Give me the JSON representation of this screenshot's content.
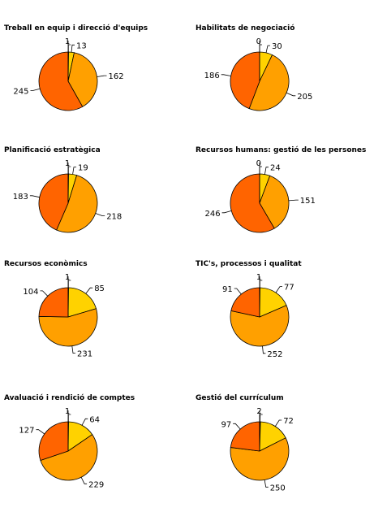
{
  "colors": {
    "very_high": "#ffd200",
    "high": "#ffa000",
    "medium": "#ff6400",
    "zero": "#000000",
    "outline": "#000000"
  },
  "chart_data": [
    {
      "type": "pie",
      "title": "Treball en equip i direcció d'equips",
      "slices": [
        {
          "value": 1,
          "color": "#000000"
        },
        {
          "value": 13,
          "color": "#ffd200"
        },
        {
          "value": 162,
          "color": "#ffa000"
        },
        {
          "value": 245,
          "color": "#ff6400"
        }
      ]
    },
    {
      "type": "pie",
      "title": "Habilitats de negociació",
      "slices": [
        {
          "value": 0,
          "color": "#000000"
        },
        {
          "value": 30,
          "color": "#ffd200"
        },
        {
          "value": 205,
          "color": "#ffa000"
        },
        {
          "value": 186,
          "color": "#ff6400"
        }
      ]
    },
    {
      "type": "pie",
      "title": "Planificació estratègica",
      "slices": [
        {
          "value": 1,
          "color": "#000000"
        },
        {
          "value": 19,
          "color": "#ffd200"
        },
        {
          "value": 218,
          "color": "#ffa000"
        },
        {
          "value": 183,
          "color": "#ff6400"
        }
      ]
    },
    {
      "type": "pie",
      "title": "Recursos humans: gestió de les persones",
      "slices": [
        {
          "value": 0,
          "color": "#000000"
        },
        {
          "value": 24,
          "color": "#ffd200"
        },
        {
          "value": 151,
          "color": "#ffa000"
        },
        {
          "value": 246,
          "color": "#ff6400"
        }
      ]
    },
    {
      "type": "pie",
      "title": "Recursos econòmics",
      "slices": [
        {
          "value": 1,
          "color": "#000000"
        },
        {
          "value": 85,
          "color": "#ffd200"
        },
        {
          "value": 231,
          "color": "#ffa000"
        },
        {
          "value": 104,
          "color": "#ff6400"
        }
      ]
    },
    {
      "type": "pie",
      "title": "TIC's, processos i qualitat",
      "slices": [
        {
          "value": 1,
          "color": "#000000"
        },
        {
          "value": 77,
          "color": "#ffd200"
        },
        {
          "value": 252,
          "color": "#ffa000"
        },
        {
          "value": 91,
          "color": "#ff6400"
        }
      ]
    },
    {
      "type": "pie",
      "title": "Avaluació i rendició de comptes",
      "slices": [
        {
          "value": 1,
          "color": "#000000"
        },
        {
          "value": 64,
          "color": "#ffd200"
        },
        {
          "value": 229,
          "color": "#ffa000"
        },
        {
          "value": 127,
          "color": "#ff6400"
        }
      ]
    },
    {
      "type": "pie",
      "title": "Gestió del currículum",
      "slices": [
        {
          "value": 2,
          "color": "#000000"
        },
        {
          "value": 72,
          "color": "#ffd200"
        },
        {
          "value": 250,
          "color": "#ffa000"
        },
        {
          "value": 97,
          "color": "#ff6400"
        }
      ]
    }
  ]
}
